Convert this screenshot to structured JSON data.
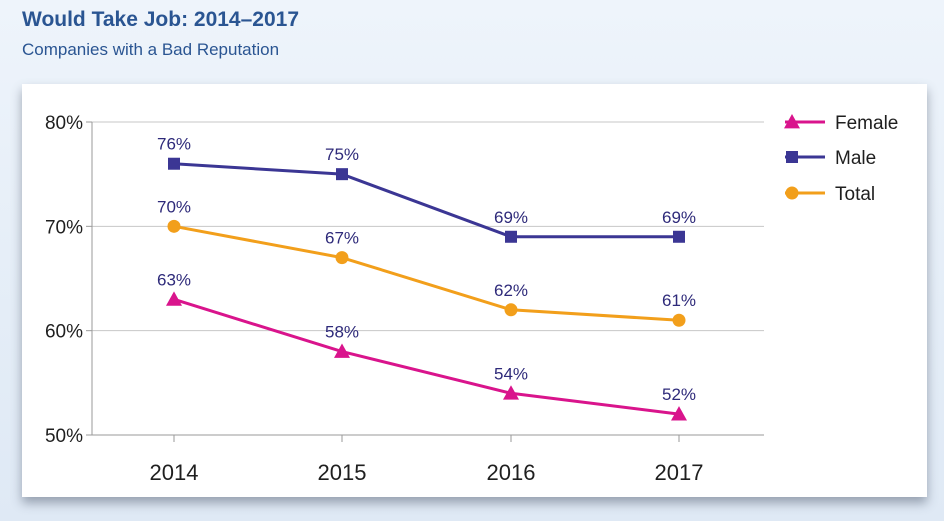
{
  "header": {
    "title": "Would Take Job: 2014–2017",
    "subtitle": "Companies with a Bad Reputation"
  },
  "colors": {
    "Female": "#d9148c",
    "Male": "#3b3694",
    "Total": "#f29f1b",
    "gridline": "#c7c7c7",
    "axis": "#9a9a9a",
    "label": "#2e2a7a"
  },
  "chart_data": {
    "type": "line",
    "title": "Would Take Job: 2014–2017",
    "subtitle": "Companies with a Bad Reputation",
    "xlabel": "",
    "ylabel": "",
    "x": [
      "2014",
      "2015",
      "2016",
      "2017"
    ],
    "ylim": [
      50,
      80
    ],
    "yticks": [
      "50%",
      "60%",
      "70%",
      "80%"
    ],
    "grid": true,
    "legend": "top-right",
    "series": [
      {
        "name": "Female",
        "marker": "triangle",
        "values": [
          63,
          58,
          54,
          52
        ],
        "labels": [
          "63%",
          "58%",
          "54%",
          "52%"
        ]
      },
      {
        "name": "Male",
        "marker": "square",
        "values": [
          76,
          75,
          69,
          69
        ],
        "labels": [
          "76%",
          "75%",
          "69%",
          "69%"
        ]
      },
      {
        "name": "Total",
        "marker": "circle",
        "values": [
          70,
          67,
          62,
          61
        ],
        "labels": [
          "70%",
          "67%",
          "62%",
          "61%"
        ]
      }
    ]
  }
}
